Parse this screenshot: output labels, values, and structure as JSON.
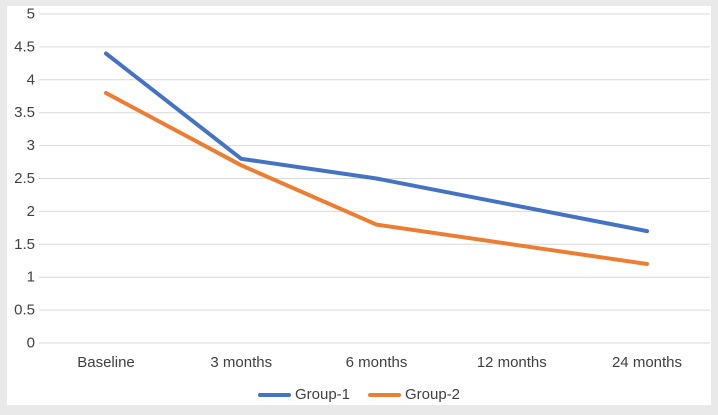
{
  "window": {
    "outer_background": "#e9e9e9",
    "panel_background": "#ffffff"
  },
  "chart_data": {
    "type": "line",
    "categories": [
      "Baseline",
      "3 months",
      "6 months",
      "12 months",
      "24 months"
    ],
    "series": [
      {
        "name": "Group-1",
        "color": "#4472C4",
        "values": [
          4.4,
          2.8,
          2.5,
          2.1,
          1.7
        ]
      },
      {
        "name": "Group-2",
        "color": "#ED7D31",
        "values": [
          3.8,
          2.7,
          1.8,
          1.5,
          1.2
        ]
      }
    ],
    "title": "",
    "xlabel": "",
    "ylabel": "",
    "ylim": [
      0,
      5
    ],
    "ytick_step": 0.5,
    "ytick_labels": [
      "0",
      "0.5",
      "1",
      "1.5",
      "2",
      "2.5",
      "3",
      "3.5",
      "4",
      "4.5",
      "5"
    ],
    "grid": "horizontal-only",
    "gridline_color": "#d9d9d9",
    "axis_text_color": "#404040",
    "legend_position": "bottom-center"
  }
}
